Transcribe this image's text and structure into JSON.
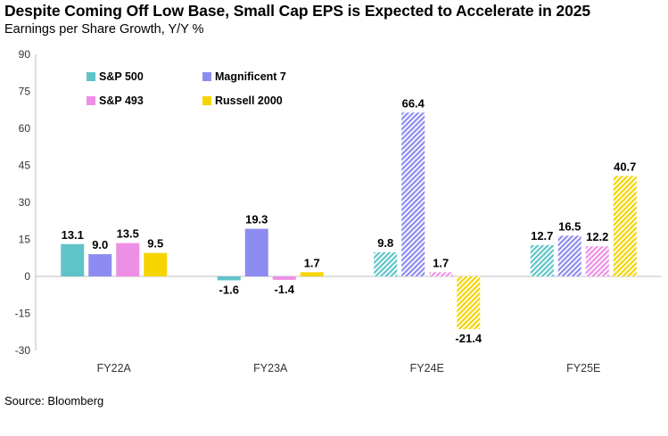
{
  "header": {
    "title": "Despite Coming Off Low Base, Small Cap EPS is Expected to Accelerate in 2025",
    "subtitle": "Earnings per Share Growth, Y/Y %"
  },
  "footer": {
    "source": "Source: Bloomberg"
  },
  "chart_data": {
    "type": "bar",
    "title": "Despite Coming Off Low Base, Small Cap EPS is Expected to Accelerate in 2025",
    "subtitle": "Earnings per Share Growth, Y/Y %",
    "xlabel": "",
    "ylabel": "",
    "ylim": [
      -30,
      90
    ],
    "yticks": [
      -30,
      -15,
      0,
      15,
      30,
      45,
      60,
      75,
      90
    ],
    "grid": false,
    "legend_position": "top-left",
    "categories": [
      "FY22A",
      "FY23A",
      "FY24E",
      "FY25E"
    ],
    "estimate_categories": [
      "FY24E",
      "FY25E"
    ],
    "series": [
      {
        "name": "S&P 500",
        "color": "#5fc4c8",
        "values": [
          13.1,
          -1.6,
          9.8,
          12.7
        ]
      },
      {
        "name": "Magnificent 7",
        "color": "#8c8cf0",
        "values": [
          9.0,
          19.3,
          66.4,
          16.5
        ]
      },
      {
        "name": "S&P 493",
        "color": "#ee8fe6",
        "values": [
          13.5,
          -1.4,
          1.7,
          12.2
        ]
      },
      {
        "name": "Russell 2000",
        "color": "#f5d400",
        "values": [
          9.5,
          1.7,
          -21.4,
          40.7
        ]
      }
    ]
  }
}
